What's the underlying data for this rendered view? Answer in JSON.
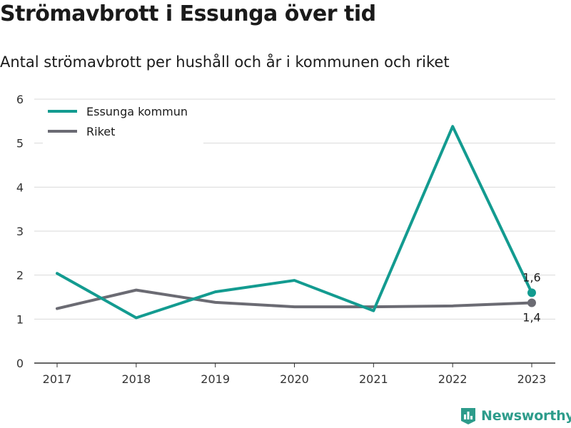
{
  "header": {
    "title": "Strömavbrott i Essunga över tid",
    "subtitle": "Antal strömavbrott per hushåll och år i kommunen och riket"
  },
  "colors": {
    "essunga": "#139b90",
    "riket": "#6b6b73",
    "grid": "#d9d9d9",
    "brand": "#2d9c8b"
  },
  "chart_data": {
    "type": "line",
    "categories": [
      "2017",
      "2018",
      "2019",
      "2020",
      "2021",
      "2022",
      "2023"
    ],
    "series": [
      {
        "name": "Essunga kommun",
        "values": [
          2.04,
          1.03,
          1.62,
          1.88,
          1.19,
          5.38,
          1.6
        ],
        "end_label": "1,6"
      },
      {
        "name": "Riket",
        "values": [
          1.24,
          1.66,
          1.38,
          1.28,
          1.28,
          1.3,
          1.37
        ],
        "end_label": "1,4"
      }
    ],
    "ylim": [
      0,
      6
    ],
    "yticks": [
      "0",
      "1",
      "2",
      "3",
      "4",
      "5",
      "6"
    ],
    "grid": true,
    "legend": "top-left"
  },
  "footer": {
    "brand": "Newsworthy",
    "logo_icon": "bar-chart-icon"
  }
}
